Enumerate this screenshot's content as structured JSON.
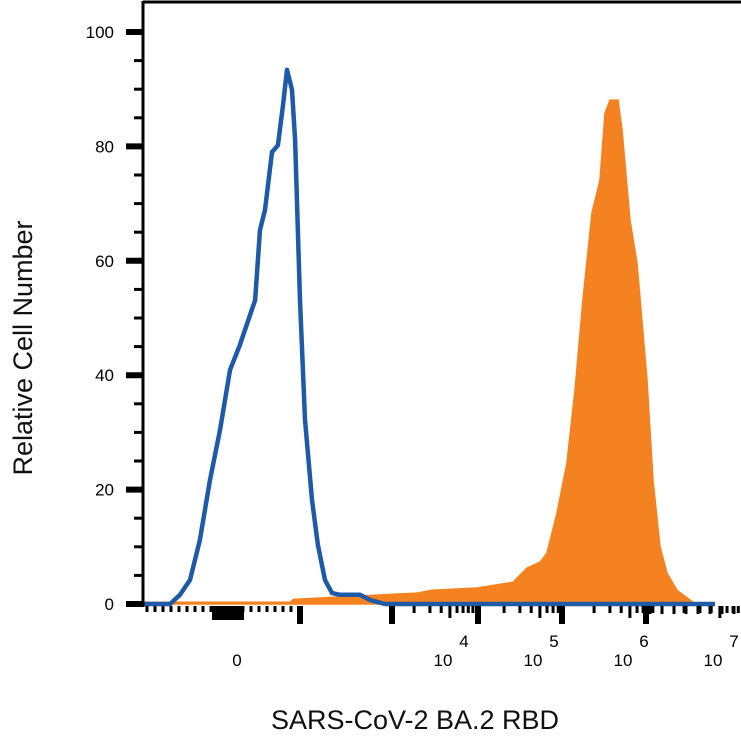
{
  "chart_data": {
    "type": "area",
    "title": "",
    "xlabel": "SARS-CoV-2 BA.2 RBD",
    "ylabel": "Relative Cell Number",
    "x_scale": "logicle (linear near 0, log above)",
    "xlim": [
      -800,
      10000000
    ],
    "ylim": [
      0,
      100
    ],
    "grid": false,
    "y_ticks": [
      0,
      20,
      40,
      60,
      80,
      100
    ],
    "y_tick_labels": [
      "0",
      "20",
      "40",
      "60",
      "80",
      "100"
    ],
    "x_ticks": [
      0,
      10000,
      100000,
      1000000,
      10000000
    ],
    "x_tick_labels": [
      {
        "base": "0",
        "exp": ""
      },
      {
        "base": "10",
        "exp": "4"
      },
      {
        "base": "10",
        "exp": "5"
      },
      {
        "base": "10",
        "exp": "6"
      },
      {
        "base": "10",
        "exp": "7"
      }
    ],
    "series": [
      {
        "style": "outline",
        "color": "#1f5aa8",
        "x": [
          -800,
          -568,
          -483,
          -398,
          -314,
          -229,
          -144,
          -59,
          25,
          110,
          153,
          195,
          237,
          297,
          347,
          390,
          424,
          466,
          492,
          534,
          576,
          636,
          686,
          746,
          805,
          873,
          1137,
          1468,
          2154,
          10000000
        ],
        "y": [
          0,
          0,
          1.6,
          4.2,
          11.2,
          21.7,
          30.4,
          40.9,
          45.3,
          50.5,
          53.1,
          65.4,
          68.9,
          79,
          80.2,
          87.2,
          93.4,
          89.9,
          81.1,
          53.1,
          32.2,
          18.2,
          10.3,
          4.2,
          1.9,
          1.6,
          1.6,
          0.7,
          0,
          0
        ]
      },
      {
        "style": "filled",
        "color": "#f58220",
        "x": [
          -800,
          450,
          480,
          4887,
          7170,
          22700,
          57000,
          81500,
          113700,
          136000,
          175500,
          227000,
          278000,
          341000,
          430000,
          527000,
          600000,
          681000,
          836000,
          926000,
          1137000,
          1360000,
          1755000,
          2047000,
          2449000,
          2929000,
          3782000,
          5275000,
          6000000
        ],
        "y": [
          0.3,
          0.3,
          0.8,
          1.9,
          2.4,
          2.8,
          3.8,
          6.3,
          7.3,
          8.9,
          15.9,
          24.7,
          37.4,
          53.1,
          68.4,
          74.1,
          85.8,
          88.1,
          88.1,
          82.9,
          67.1,
          59.6,
          39.2,
          21.7,
          10.0,
          5.4,
          2.4,
          0.7,
          0
        ]
      }
    ]
  }
}
